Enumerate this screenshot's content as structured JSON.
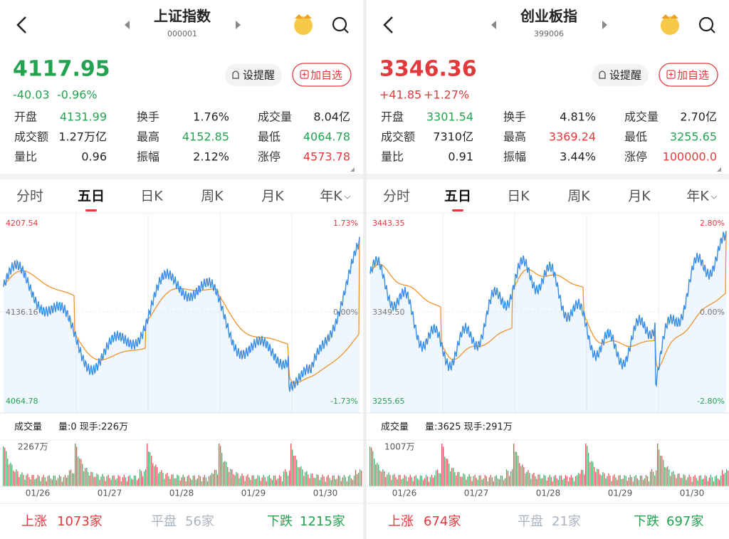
{
  "panels": [
    {
      "header": {
        "name": "上证指数",
        "code": "000001"
      },
      "quote": {
        "price": "4117.95",
        "change": "-40.03",
        "change_pct": "-0.96%",
        "color": "#22a350"
      },
      "stats": [
        [
          {
            "label": "开盘",
            "value": "4131.99",
            "color": "#22a350"
          },
          {
            "label": "换手",
            "value": "1.76%",
            "color": "#222"
          },
          {
            "label": "成交量",
            "value": "8.04亿",
            "color": "#222"
          }
        ],
        [
          {
            "label": "成交额",
            "value": "1.27万亿",
            "color": "#222"
          },
          {
            "label": "最高",
            "value": "4152.85",
            "color": "#22a350"
          },
          {
            "label": "最低",
            "value": "4064.78",
            "color": "#22a350"
          }
        ],
        [
          {
            "label": "量比",
            "value": "0.96",
            "color": "#222"
          },
          {
            "label": "振幅",
            "value": "2.12%",
            "color": "#222"
          },
          {
            "label": "涨停",
            "value": "4573.78",
            "color": "#e3393c"
          }
        ]
      ],
      "buttons": [
        "设提醒",
        "加自选"
      ],
      "tabs": [
        "分时",
        "五日",
        "日K",
        "周K",
        "月K",
        "年K"
      ],
      "active_tab": 1,
      "chart": {
        "high": "4207.54",
        "mid": "4136.16",
        "low": "4064.78",
        "pct_high": "1.73%",
        "pct_mid": "0.00%",
        "pct_low": "-1.73%"
      },
      "volume": {
        "title": "成交量",
        "info": "量:0 现手:226万",
        "max": "2267万",
        "dates": [
          "01/26",
          "01/27",
          "01/28",
          "01/29",
          "01/30"
        ]
      },
      "breadth": {
        "up_label": "上涨",
        "up": "1073家",
        "flat_label": "平盘",
        "flat": "56家",
        "down_label": "下跌",
        "down": "1215家"
      }
    },
    {
      "header": {
        "name": "创业板指",
        "code": "399006"
      },
      "quote": {
        "price": "3346.36",
        "change": "+41.85",
        "change_pct": "+1.27%",
        "color": "#e3393c"
      },
      "stats": [
        [
          {
            "label": "开盘",
            "value": "3301.54",
            "color": "#22a350"
          },
          {
            "label": "换手",
            "value": "4.81%",
            "color": "#222"
          },
          {
            "label": "成交量",
            "value": "2.70亿",
            "color": "#222"
          }
        ],
        [
          {
            "label": "成交额",
            "value": "7310亿",
            "color": "#222"
          },
          {
            "label": "最高",
            "value": "3369.24",
            "color": "#e3393c"
          },
          {
            "label": "最低",
            "value": "3255.65",
            "color": "#22a350"
          }
        ],
        [
          {
            "label": "量比",
            "value": "0.91",
            "color": "#222"
          },
          {
            "label": "振幅",
            "value": "3.44%",
            "color": "#222"
          },
          {
            "label": "涨停",
            "value": "100000.0",
            "color": "#e3393c"
          }
        ]
      ],
      "buttons": [
        "设提醒",
        "加自选"
      ],
      "tabs": [
        "分时",
        "五日",
        "日K",
        "周K",
        "月K",
        "年K"
      ],
      "active_tab": 1,
      "chart": {
        "high": "3443.35",
        "mid": "3349.50",
        "low": "3255.65",
        "pct_high": "2.80%",
        "pct_mid": "0.00%",
        "pct_low": "-2.80%"
      },
      "volume": {
        "title": "成交量",
        "info": "量:3625 现手:291万",
        "max": "1007万",
        "dates": [
          "01/26",
          "01/27",
          "01/28",
          "01/29",
          "01/30"
        ]
      },
      "breadth": {
        "up_label": "上涨",
        "up": "674家",
        "flat_label": "平盘",
        "flat": "21家",
        "down_label": "下跌",
        "down": "697家"
      }
    }
  ]
}
